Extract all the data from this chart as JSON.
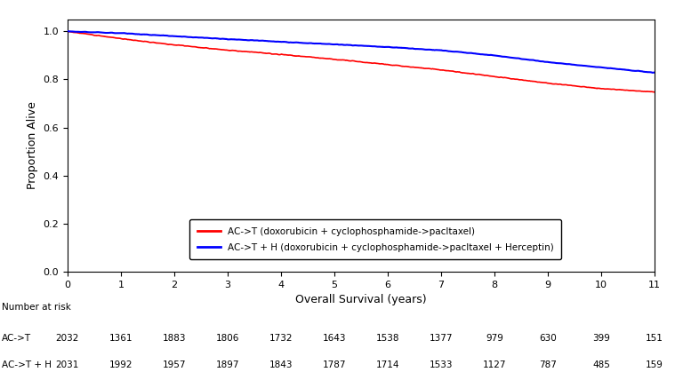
{
  "xlabel": "Overall Survival (years)",
  "ylabel": "Proportion Alive",
  "xlim": [
    0,
    11
  ],
  "ylim": [
    0.0,
    1.05
  ],
  "yticks": [
    0.0,
    0.2,
    0.4,
    0.6,
    0.8,
    1.0
  ],
  "xticks": [
    0,
    1,
    2,
    3,
    4,
    5,
    6,
    7,
    8,
    9,
    10,
    11
  ],
  "legend_labels": [
    "AC->T (doxorubicin + cyclophosphamide->pacltaxel)",
    "AC->T + H (doxorubicin + cyclophosphamide->pacltaxel + Herceptin)"
  ],
  "line_colors": [
    "red",
    "blue"
  ],
  "at_risk_label": "Number at risk",
  "at_risk_rows": [
    {
      "label": "AC->T",
      "values": [
        2032,
        1361,
        1883,
        1806,
        1732,
        1643,
        1538,
        1377,
        979,
        630,
        399,
        151
      ]
    },
    {
      "label": "AC->T + H",
      "values": [
        2031,
        1992,
        1957,
        1897,
        1843,
        1787,
        1714,
        1533,
        1127,
        787,
        485,
        159
      ]
    }
  ],
  "ac_t_survival": [
    1.0,
    0.97,
    0.944,
    0.922,
    0.904,
    0.884,
    0.862,
    0.84,
    0.812,
    0.784,
    0.762,
    0.748
  ],
  "ac_th_survival": [
    1.0,
    0.993,
    0.98,
    0.968,
    0.957,
    0.946,
    0.935,
    0.921,
    0.9,
    0.872,
    0.85,
    0.828
  ]
}
